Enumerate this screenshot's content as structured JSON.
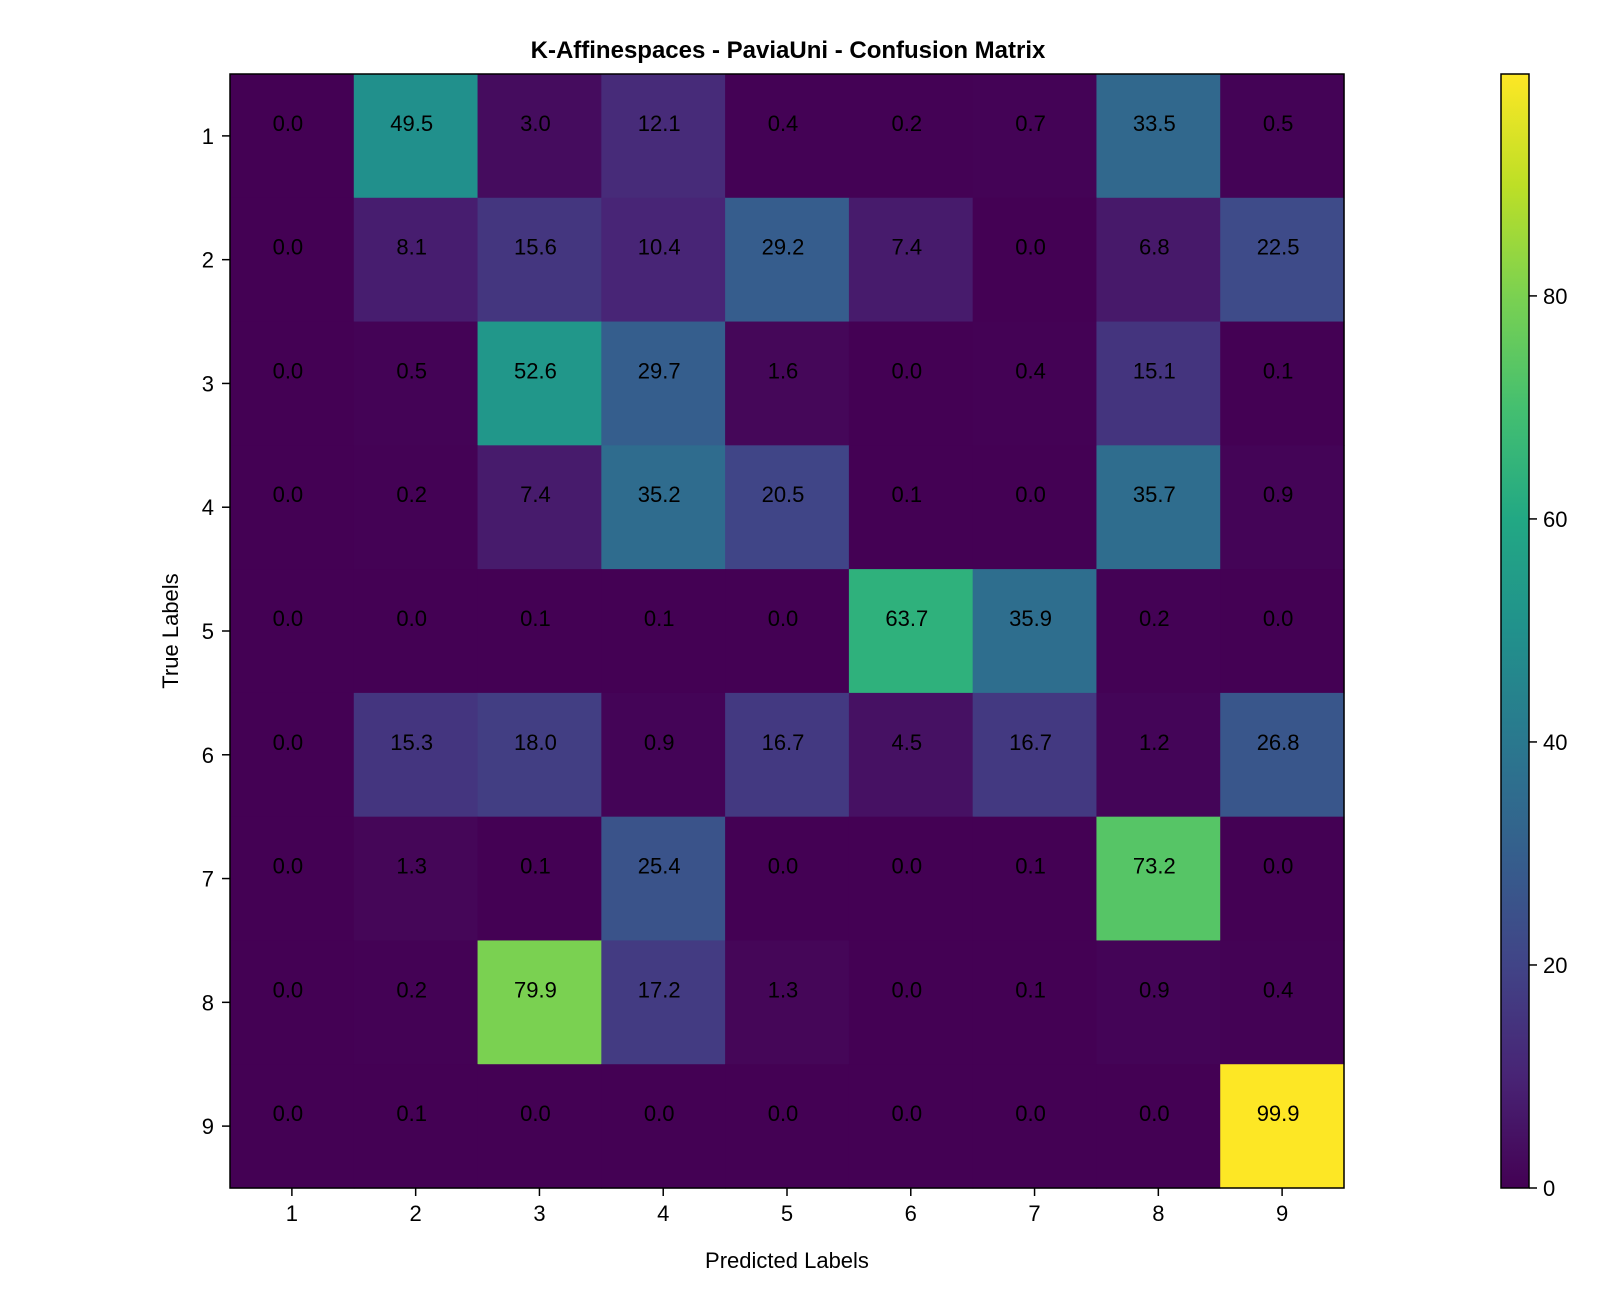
{
  "chart_data": {
    "type": "heatmap",
    "title": "K-Affinespaces - PaviaUni - Confusion Matrix",
    "xlabel": "Predicted Labels",
    "ylabel": "True Labels",
    "x_categories": [
      "1",
      "2",
      "3",
      "4",
      "5",
      "6",
      "7",
      "8",
      "9"
    ],
    "y_categories": [
      "1",
      "2",
      "3",
      "4",
      "5",
      "6",
      "7",
      "8",
      "9"
    ],
    "values": [
      [
        0.0,
        49.5,
        3.0,
        12.1,
        0.4,
        0.2,
        0.7,
        33.5,
        0.5
      ],
      [
        0.0,
        8.1,
        15.6,
        10.4,
        29.2,
        7.4,
        0.0,
        6.8,
        22.5
      ],
      [
        0.0,
        0.5,
        52.6,
        29.7,
        1.6,
        0.0,
        0.4,
        15.1,
        0.1
      ],
      [
        0.0,
        0.2,
        7.4,
        35.2,
        20.5,
        0.1,
        0.0,
        35.7,
        0.9
      ],
      [
        0.0,
        0.0,
        0.1,
        0.1,
        0.0,
        63.7,
        35.9,
        0.2,
        0.0
      ],
      [
        0.0,
        15.3,
        18.0,
        0.9,
        16.7,
        4.5,
        16.7,
        1.2,
        26.8
      ],
      [
        0.0,
        1.3,
        0.1,
        25.4,
        0.0,
        0.0,
        0.1,
        73.2,
        0.0
      ],
      [
        0.0,
        0.2,
        79.9,
        17.2,
        1.3,
        0.0,
        0.1,
        0.9,
        0.4
      ],
      [
        0.0,
        0.1,
        0.0,
        0.0,
        0.0,
        0.0,
        0.0,
        0.0,
        99.9
      ]
    ],
    "value_labels": [
      [
        "0.0",
        "49.5",
        "3.0",
        "12.1",
        "0.4",
        "0.2",
        "0.7",
        "33.5",
        "0.5"
      ],
      [
        "0.0",
        "8.1",
        "15.6",
        "10.4",
        "29.2",
        "7.4",
        "0.0",
        "6.8",
        "22.5"
      ],
      [
        "0.0",
        "0.5",
        "52.6",
        "29.7",
        "1.6",
        "0.0",
        "0.4",
        "15.1",
        "0.1"
      ],
      [
        "0.0",
        "0.2",
        "7.4",
        "35.2",
        "20.5",
        "0.1",
        "0.0",
        "35.7",
        "0.9"
      ],
      [
        "0.0",
        "0.0",
        "0.1",
        "0.1",
        "0.0",
        "63.7",
        "35.9",
        "0.2",
        "0.0"
      ],
      [
        "0.0",
        "15.3",
        "18.0",
        "0.9",
        "16.7",
        "4.5",
        "16.7",
        "1.2",
        "26.8"
      ],
      [
        "0.0",
        "1.3",
        "0.1",
        "25.4",
        "0.0",
        "0.0",
        "0.1",
        "73.2",
        "0.0"
      ],
      [
        "0.0",
        "0.2",
        "79.9",
        "17.2",
        "1.3",
        "0.0",
        "0.1",
        "0.9",
        "0.4"
      ],
      [
        "0.0",
        "0.1",
        "0.0",
        "0.0",
        "0.0",
        "0.0",
        "0.0",
        "0.0",
        "99.9"
      ]
    ],
    "colormap": "viridis",
    "color_range": [
      0,
      99.9
    ],
    "colorbar": {
      "ticks": [
        0,
        20,
        40,
        60,
        80
      ],
      "tick_labels": [
        "0",
        "20",
        "40",
        "60",
        "80"
      ]
    },
    "grid": false,
    "legend": "colorbar-right"
  }
}
